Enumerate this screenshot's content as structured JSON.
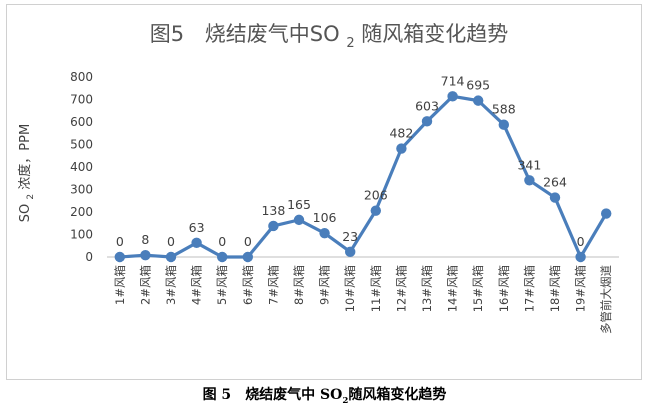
{
  "chart_data": {
    "type": "line",
    "title_parts": {
      "label": "图5",
      "before": "烧结废气中SO",
      "sub": "2",
      "after": "随风箱变化趋势"
    },
    "ylabel_parts": {
      "before": "SO",
      "sub": "2",
      "after": "浓度，PPM"
    },
    "xlabel": "",
    "categories": [
      "1#风箱",
      "2#风箱",
      "3#风箱",
      "4#风箱",
      "5#风箱",
      "6#风箱",
      "7#风箱",
      "8#风箱",
      "9#风箱",
      "10#风箱",
      "11#风箱",
      "12#风箱",
      "13#风箱",
      "14#风箱",
      "15#风箱",
      "16#风箱",
      "17#风箱",
      "18#风箱",
      "19#风箱",
      "多管前大烟道"
    ],
    "series": [
      {
        "values": [
          0,
          8,
          0,
          63,
          0,
          0,
          138,
          165,
          106,
          23,
          206,
          482,
          603,
          714,
          695,
          588,
          341,
          264,
          0,
          193
        ],
        "data_labels": [
          "0",
          "8",
          "0",
          "63",
          "0",
          "0",
          "138",
          "165",
          "106",
          "23",
          "206",
          "482",
          "603",
          "714",
          "695",
          "588",
          "341",
          "264",
          "0",
          ""
        ]
      }
    ],
    "ylim": [
      0,
      800
    ],
    "yticks": [
      0,
      100,
      200,
      300,
      400,
      500,
      600,
      700,
      800
    ],
    "grid": false,
    "legend": "none",
    "line_color": "#4a7ebb",
    "marker_color": "#4a7ebb"
  },
  "caption": {
    "number": "图 5",
    "before": "烧结废气中 SO",
    "sub": "2",
    "after": "随风箱变化趋势"
  }
}
